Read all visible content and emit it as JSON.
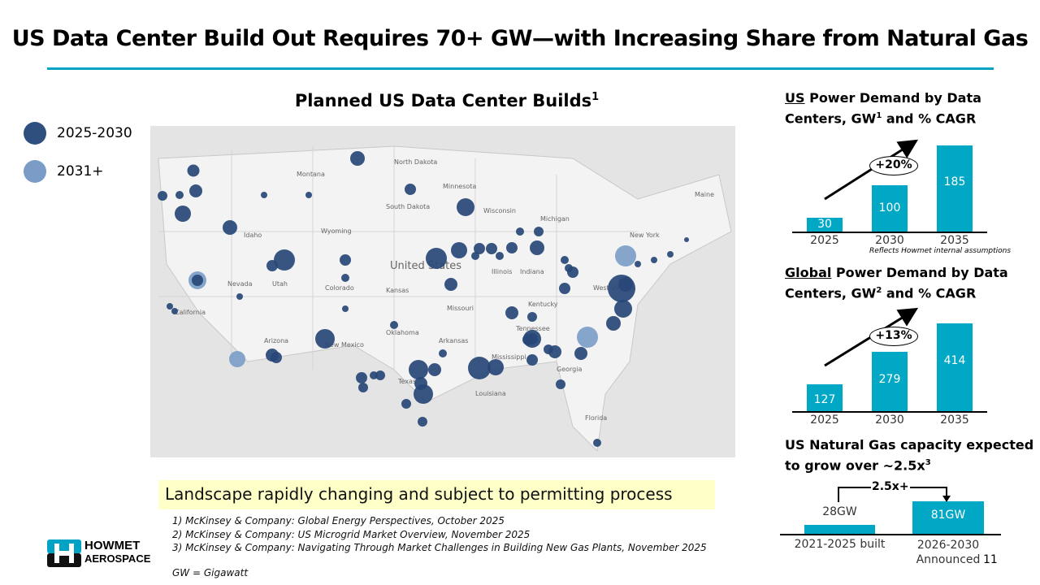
{
  "title": "US Data Center Build Out Requires 70+ GW—with Increasing Share from Natural Gas",
  "map": {
    "title": "Planned US Data Center Builds",
    "title_sup": "1",
    "legend": [
      {
        "label": "2025-2030",
        "color": "#2f4f7f"
      },
      {
        "label": "2031+",
        "color": "#7a9cc6"
      }
    ],
    "state_labels": [
      "Montana",
      "North Dakota",
      "Minnesota",
      "South Dakota",
      "Wyoming",
      "Wisconsin",
      "Michigan",
      "Nevada",
      "Utah",
      "Colorado",
      "United States",
      "Kansas",
      "Missouri",
      "Illinois",
      "Indiana",
      "Kentucky",
      "West Virginia",
      "Oklahoma",
      "Arkansas",
      "Tennessee",
      "Arizona",
      "New Mexico",
      "Texas",
      "Mississippi",
      "Georgia",
      "Louisiana",
      "Florida",
      "New York",
      "Maine",
      "California",
      "Idaho"
    ]
  },
  "banner": "Landscape rapidly changing and subject to permitting process",
  "footnotes": [
    "1)   McKinsey & Company: Global Energy Perspectives, October 2025",
    "2)   McKinsey & Company: US Microgrid Market Overview, November 2025",
    "3)   McKinsey & Company: Navigating Through Market Challenges in Building New Gas Plants, November 2025"
  ],
  "gw_note": "GW = Gigawatt",
  "logo": {
    "line1": "HOWMET",
    "line2": "AEROSPACE"
  },
  "page_number": "11",
  "colors": {
    "accent": "#00a8c6",
    "bubble_dark": "#2f4f7f",
    "bubble_light": "#7a9cc6"
  },
  "chart_data": [
    {
      "type": "bar",
      "title_underlined": "US",
      "title": " Power Demand by Data",
      "title2": "Centers, GW",
      "title_sup": "1",
      "title3": " and % CAGR",
      "categories": [
        "2025",
        "2030",
        "2035"
      ],
      "values": [
        30,
        100,
        185
      ],
      "labels": [
        "30",
        "100",
        "185"
      ],
      "cagr": "+20%",
      "note": "Reflects Howmet internal assumptions",
      "ylim": [
        0,
        185
      ]
    },
    {
      "type": "bar",
      "title_underlined": "Global",
      "title": " Power Demand by Data",
      "title2": "Centers, GW",
      "title_sup": "2",
      "title3": " and % CAGR",
      "categories": [
        "2025",
        "2030",
        "2035"
      ],
      "values": [
        127,
        279,
        414
      ],
      "labels": [
        "127",
        "279",
        "414"
      ],
      "cagr": "+13%",
      "ylim": [
        0,
        414
      ]
    },
    {
      "type": "bar",
      "title": "US Natural Gas capacity expected",
      "title2": "to grow over ~2.5x",
      "title_sup": "3",
      "categories": [
        "2021-2025 built",
        "2026-2030 Announced"
      ],
      "values": [
        28,
        81
      ],
      "labels": [
        "28GW",
        "81GW"
      ],
      "annotation": "2.5x+",
      "ylim": [
        0,
        81
      ]
    }
  ]
}
